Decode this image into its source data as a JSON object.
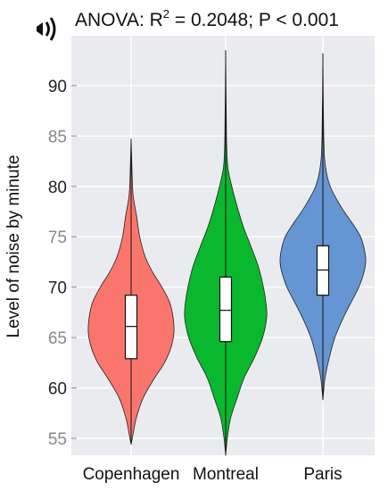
{
  "chart_data": {
    "type": "violin",
    "title_prefix": "ANOVA: R",
    "title_sup": "2",
    "title_suffix": " = 0.2048; P < 0.001",
    "ylabel": "Level of noise by minute",
    "xlabel": "",
    "ylim": [
      53.5,
      96
    ],
    "yticks": [
      55,
      60,
      65,
      70,
      75,
      80,
      85,
      90
    ],
    "ytick_colors": {
      "55": "#888888",
      "60": "#222222",
      "65": "#888888",
      "70": "#222222",
      "75": "#888888",
      "80": "#222222",
      "85": "#888888",
      "90": "#222222"
    },
    "grid": true,
    "background": "#e9ebee",
    "categories": [
      "Copenhagen",
      "Montreal",
      "Paris"
    ],
    "series": [
      {
        "category": "Copenhagen",
        "color": "#fa766d",
        "min": 54.4,
        "max": 84.7,
        "q1": 62.9,
        "median": 66.1,
        "q3": 69.2,
        "whisker_low": 55.2,
        "whisker_high": 78.5,
        "density": [
          [
            54.4,
            0.0
          ],
          [
            55.5,
            0.05
          ],
          [
            57,
            0.12
          ],
          [
            59,
            0.28
          ],
          [
            61,
            0.55
          ],
          [
            62.5,
            0.78
          ],
          [
            64,
            0.93
          ],
          [
            65.5,
            1.0
          ],
          [
            67,
            0.98
          ],
          [
            68.5,
            0.9
          ],
          [
            70,
            0.72
          ],
          [
            71.5,
            0.5
          ],
          [
            73,
            0.33
          ],
          [
            75,
            0.2
          ],
          [
            77,
            0.13
          ],
          [
            79,
            0.05
          ],
          [
            81,
            0.025
          ],
          [
            84.7,
            0.0
          ]
        ]
      },
      {
        "category": "Montreal",
        "color": "#0ab82e",
        "min": 53.3,
        "max": 93.5,
        "q1": 64.6,
        "median": 67.7,
        "q3": 71.0,
        "whisker_low": 55.0,
        "whisker_high": 80.5,
        "density": [
          [
            53.3,
            0.0
          ],
          [
            55,
            0.04
          ],
          [
            57,
            0.12
          ],
          [
            59,
            0.28
          ],
          [
            61,
            0.45
          ],
          [
            63,
            0.7
          ],
          [
            65,
            0.9
          ],
          [
            67,
            1.0
          ],
          [
            68.5,
            0.98
          ],
          [
            70,
            0.92
          ],
          [
            72,
            0.8
          ],
          [
            74,
            0.62
          ],
          [
            76,
            0.43
          ],
          [
            78,
            0.28
          ],
          [
            80,
            0.15
          ],
          [
            82,
            0.05
          ],
          [
            85,
            0.02
          ],
          [
            93.5,
            0.0
          ]
        ]
      },
      {
        "category": "Paris",
        "color": "#6695d3",
        "min": 58.8,
        "max": 93.2,
        "q1": 69.2,
        "median": 71.7,
        "q3": 74.1,
        "whisker_low": 61.5,
        "whisker_high": 82.0,
        "density": [
          [
            58.8,
            0.0
          ],
          [
            61,
            0.05
          ],
          [
            63,
            0.15
          ],
          [
            65,
            0.28
          ],
          [
            67,
            0.48
          ],
          [
            68.5,
            0.66
          ],
          [
            70,
            0.84
          ],
          [
            71.5,
            0.96
          ],
          [
            72.5,
            1.0
          ],
          [
            73.5,
            0.98
          ],
          [
            75,
            0.88
          ],
          [
            76.5,
            0.66
          ],
          [
            78,
            0.42
          ],
          [
            80,
            0.17
          ],
          [
            82,
            0.06
          ],
          [
            85,
            0.02
          ],
          [
            93.2,
            0.0
          ]
        ]
      }
    ]
  }
}
